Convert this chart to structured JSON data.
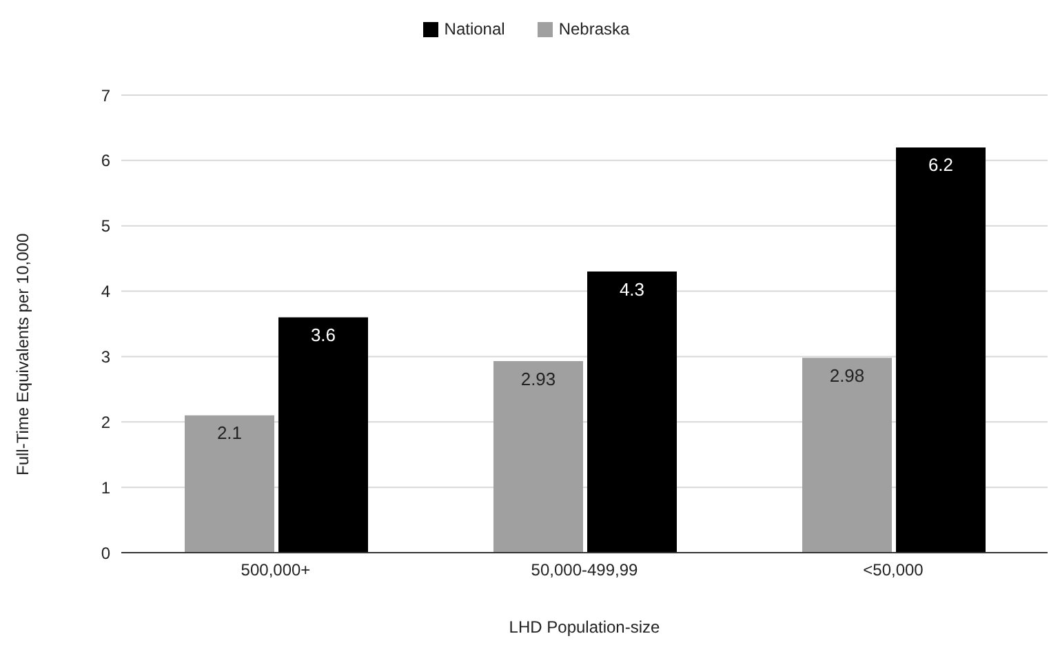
{
  "chart_data": {
    "type": "bar",
    "xlabel": "LHD Population-size",
    "ylabel": "Full-Time Equivalents per 10,000",
    "categories": [
      "500,000+",
      "50,000-499,99",
      "<50,000"
    ],
    "series": [
      {
        "name": "Nebraska",
        "color": "#a0a0a0",
        "values": [
          2.1,
          2.93,
          2.98
        ]
      },
      {
        "name": "National",
        "color": "#000000",
        "values": [
          3.6,
          4.3,
          6.2
        ]
      }
    ],
    "ylim": [
      0,
      7
    ],
    "yticks": [
      0,
      1,
      2,
      3,
      4,
      5,
      6,
      7
    ],
    "grid": "y",
    "legend": "top",
    "data_labels": true
  }
}
